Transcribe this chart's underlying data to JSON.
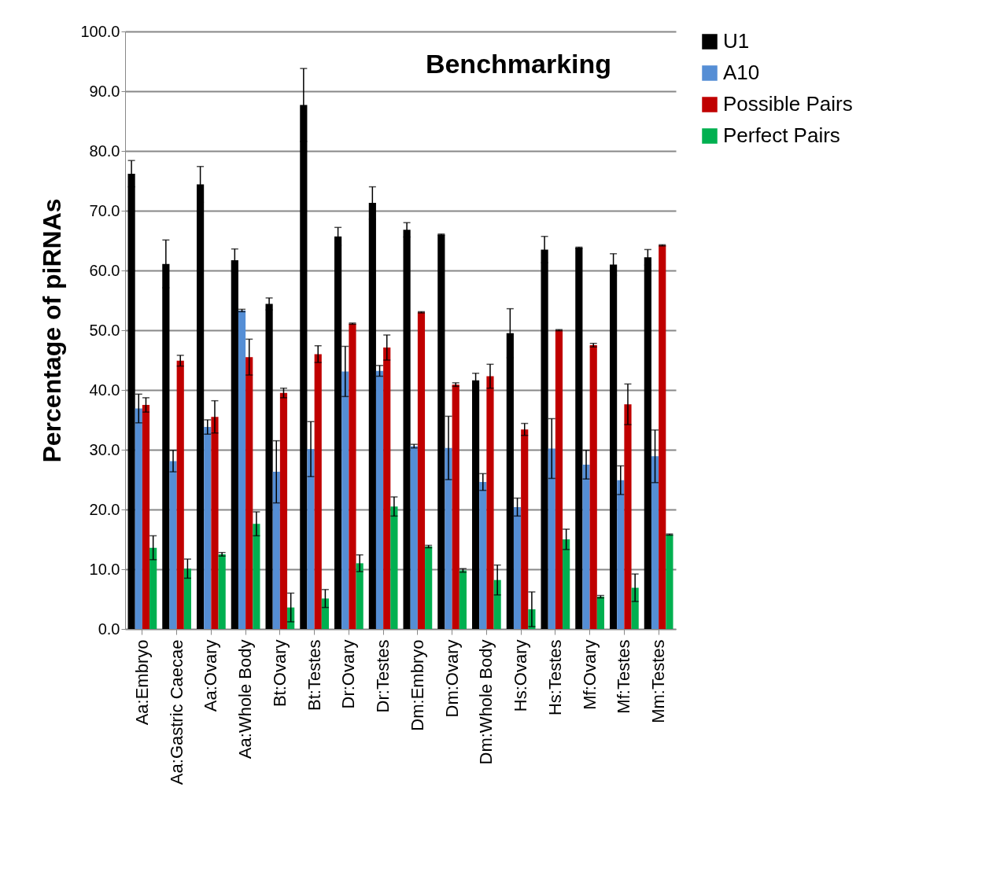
{
  "chart_data": {
    "type": "bar",
    "title": "Benchmarking",
    "ylabel": "Percentage of piRNAs",
    "categories": [
      "Aa:Embryo",
      "Aa:Gastric Caecae",
      "Aa:Ovary",
      "Aa:Whole Body",
      "Bt:Ovary",
      "Bt:Testes",
      "Dr:Ovary",
      "Dr:Testes",
      "Dm:Embryo",
      "Dm:Ovary",
      "Dm:Whole Body",
      "Hs:Ovary",
      "Hs:Testes",
      "Mf:Ovary",
      "Mf:Testes",
      "Mm:Testes"
    ],
    "series": [
      {
        "name": "U1",
        "color": "#000000",
        "values": [
          76.2,
          61.1,
          74.4,
          61.7,
          54.4,
          87.7,
          65.7,
          71.3,
          66.8,
          66.0,
          41.6,
          49.5,
          63.5,
          63.8,
          61.0,
          62.2
        ],
        "errors": [
          2.2,
          4.0,
          3.0,
          1.9,
          1.0,
          6.1,
          1.5,
          2.7,
          1.2,
          0.1,
          1.2,
          4.1,
          2.2,
          0.1,
          1.8,
          1.3
        ]
      },
      {
        "name": "A10",
        "color": "#558ed5",
        "values": [
          36.9,
          28.1,
          33.8,
          53.3,
          26.3,
          30.1,
          43.1,
          43.2,
          30.6,
          30.3,
          24.6,
          20.4,
          30.2,
          27.5,
          24.9,
          28.9
        ],
        "errors": [
          2.4,
          1.8,
          1.2,
          0.2,
          5.2,
          4.6,
          4.2,
          0.9,
          0.3,
          5.3,
          1.4,
          1.5,
          5.0,
          2.4,
          2.4,
          4.4
        ]
      },
      {
        "name": "Possible Pairs",
        "color": "#c00000",
        "values": [
          37.5,
          44.9,
          35.5,
          45.5,
          39.5,
          46.0,
          51.1,
          47.1,
          53.0,
          40.9,
          42.3,
          33.4,
          50.0,
          47.5,
          37.6,
          64.2
        ],
        "errors": [
          1.2,
          0.9,
          2.7,
          3.0,
          0.8,
          1.4,
          0.1,
          2.1,
          0.1,
          0.3,
          2.0,
          1.0,
          0.1,
          0.3,
          3.4,
          0.1
        ]
      },
      {
        "name": "Perfect Pairs",
        "color": "#00b050",
        "values": [
          13.6,
          10.1,
          12.5,
          17.6,
          3.6,
          5.1,
          11.0,
          20.5,
          13.8,
          9.8,
          8.2,
          3.3,
          15.0,
          5.4,
          6.9,
          15.8
        ],
        "errors": [
          2.0,
          1.6,
          0.3,
          2.0,
          2.4,
          1.5,
          1.4,
          1.6,
          0.2,
          0.3,
          2.5,
          2.9,
          1.7,
          0.2,
          2.3,
          0.1
        ]
      }
    ],
    "ylim": [
      0,
      100
    ],
    "yticks": [
      {
        "value": 0,
        "label": "0.0"
      },
      {
        "value": 10,
        "label": "10.0"
      },
      {
        "value": 20,
        "label": "20.0"
      },
      {
        "value": 30,
        "label": "30.0"
      },
      {
        "value": 40,
        "label": "40.0"
      },
      {
        "value": 50,
        "label": "50.0"
      },
      {
        "value": 60,
        "label": "60.0"
      },
      {
        "value": 70,
        "label": "70.0"
      },
      {
        "value": 80,
        "label": "80.0"
      },
      {
        "value": 90,
        "label": "90.0"
      },
      {
        "value": 100,
        "label": "100.0"
      }
    ],
    "grid": "y",
    "legend": "right"
  }
}
